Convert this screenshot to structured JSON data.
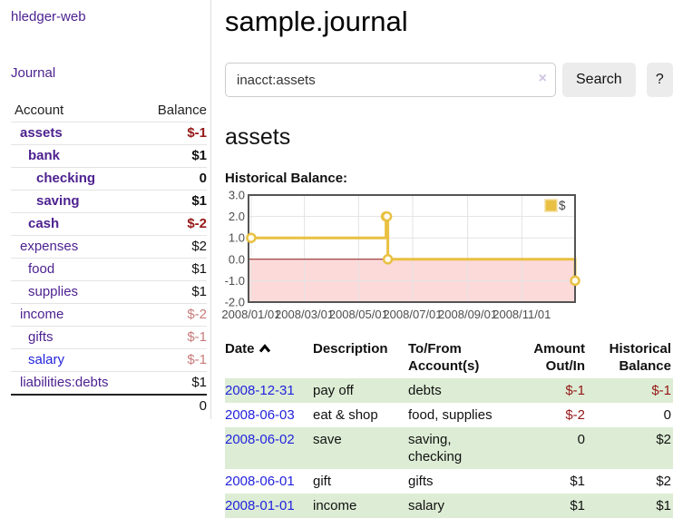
{
  "colors": {
    "purple": "#4d2290",
    "blue": "#2323dd",
    "darkred": "#951717",
    "softred": "#c97b7b",
    "row_green": "#ddedd5"
  },
  "sidebar": {
    "app_title": "hledger-web",
    "journal_link": "Journal",
    "accounts_table": {
      "headers": {
        "account": "Account",
        "balance": "Balance"
      },
      "rows": [
        {
          "name": "assets",
          "balance": "$-1",
          "indent": 1,
          "bold": true,
          "neg": "strong"
        },
        {
          "name": "bank",
          "balance": "$1",
          "indent": 2,
          "bold": true
        },
        {
          "name": "checking",
          "balance": "0",
          "indent": 3,
          "bold": true
        },
        {
          "name": "saving",
          "balance": "$1",
          "indent": 3,
          "bold": true
        },
        {
          "name": "cash",
          "balance": "$-2",
          "indent": 2,
          "bold": true,
          "neg": "strong"
        },
        {
          "name": "expenses",
          "balance": "$2",
          "indent": 1
        },
        {
          "name": "food",
          "balance": "$1",
          "indent": 2
        },
        {
          "name": "supplies",
          "balance": "$1",
          "indent": 2
        },
        {
          "name": "income",
          "balance": "$-2",
          "indent": 1,
          "neg": "soft"
        },
        {
          "name": "gifts",
          "balance": "$-1",
          "indent": 2,
          "neg": "soft"
        },
        {
          "name": "salary",
          "balance": "$-1",
          "indent": 2,
          "neg": "soft",
          "link": "unvisited"
        },
        {
          "name": "liabilities:debts",
          "balance": "$1",
          "indent": 1
        }
      ],
      "total": "0"
    }
  },
  "header": {
    "title": "sample.journal"
  },
  "search": {
    "query": "inacct:assets",
    "clear_icon": "×",
    "button_label": "Search",
    "help_label": "?"
  },
  "account_page": {
    "title": "assets",
    "chart_title": "Historical Balance:"
  },
  "chart_data": {
    "type": "line",
    "style": "steps",
    "title": "Historical Balance:",
    "ylim": [
      -2,
      3
    ],
    "y_ticks": [
      3.0,
      2.0,
      1.0,
      0.0,
      -1.0,
      -2.0
    ],
    "xlim_days": [
      -3,
      365
    ],
    "x_ticks": [
      {
        "label": "2008/01/01",
        "day": 0
      },
      {
        "label": "2008/03/01",
        "day": 60
      },
      {
        "label": "2008/05/01",
        "day": 121
      },
      {
        "label": "2008/07/01",
        "day": 182
      },
      {
        "label": "2008/09/01",
        "day": 244
      },
      {
        "label": "2008/11/01",
        "day": 305
      }
    ],
    "series": [
      {
        "name": "$",
        "color": "#e9c043",
        "marker_fill": "#fffdf0",
        "points": [
          {
            "date": "2008-01-01",
            "day": 0,
            "value": 1
          },
          {
            "date": "2008-06-01",
            "day": 152,
            "value": 2
          },
          {
            "date": "2008-06-02",
            "day": 153,
            "value": 2
          },
          {
            "date": "2008-06-03",
            "day": 154,
            "value": 0
          },
          {
            "date": "2008-12-31",
            "day": 365,
            "value": -1
          }
        ]
      }
    ],
    "negative_region_color": "#fcdada",
    "zero_line_color": "#8e1414",
    "grid_color": "#e3e3e3",
    "border_color": "#545454",
    "legend": {
      "label": "$",
      "position": "top-right"
    }
  },
  "register": {
    "headers": {
      "date": "Date",
      "description": "Description",
      "accounts": "To/From Account(s)",
      "amount": "Amount Out/In",
      "balance": "Historical Balance"
    },
    "rows": [
      {
        "date": "2008-12-31",
        "description": "pay off",
        "accounts": "debts",
        "amount": "$-1",
        "amount_neg": true,
        "balance": "$-1",
        "balance_neg": true
      },
      {
        "date": "2008-06-03",
        "description": "eat & shop",
        "accounts": "food, supplies",
        "amount": "$-2",
        "amount_neg": true,
        "balance": "0"
      },
      {
        "date": "2008-06-02",
        "description": "save",
        "accounts": "saving, checking",
        "amount": "0",
        "balance": "$2"
      },
      {
        "date": "2008-06-01",
        "description": "gift",
        "accounts": "gifts",
        "amount": "$1",
        "balance": "$2"
      },
      {
        "date": "2008-01-01",
        "description": "income",
        "accounts": "salary",
        "amount": "$1",
        "balance": "$1"
      }
    ]
  }
}
